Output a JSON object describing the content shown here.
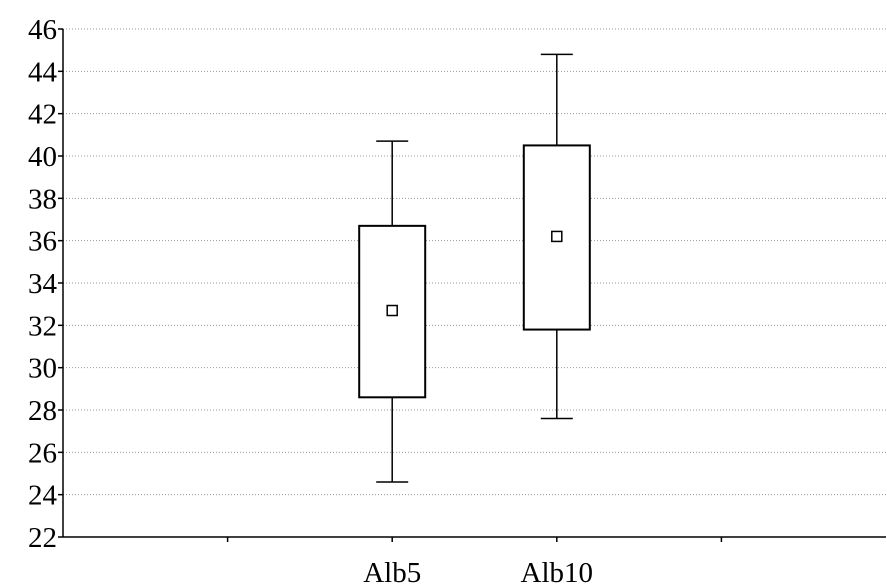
{
  "chart_data": {
    "type": "box",
    "title": "",
    "xlabel": "",
    "ylabel": "",
    "ylim": [
      22,
      46
    ],
    "y_ticks": [
      22,
      24,
      26,
      28,
      30,
      32,
      34,
      36,
      38,
      40,
      42,
      44,
      46
    ],
    "grid": true,
    "categories": [
      "Alb5",
      "Alb10"
    ],
    "series": [
      {
        "category": "Alb5",
        "whisker_low": 24.6,
        "box_low": 28.6,
        "center": 32.7,
        "box_high": 36.7,
        "whisker_high": 40.7
      },
      {
        "category": "Alb10",
        "whisker_low": 27.6,
        "box_low": 31.8,
        "center": 36.2,
        "box_high": 40.5,
        "whisker_high": 44.8
      }
    ]
  }
}
